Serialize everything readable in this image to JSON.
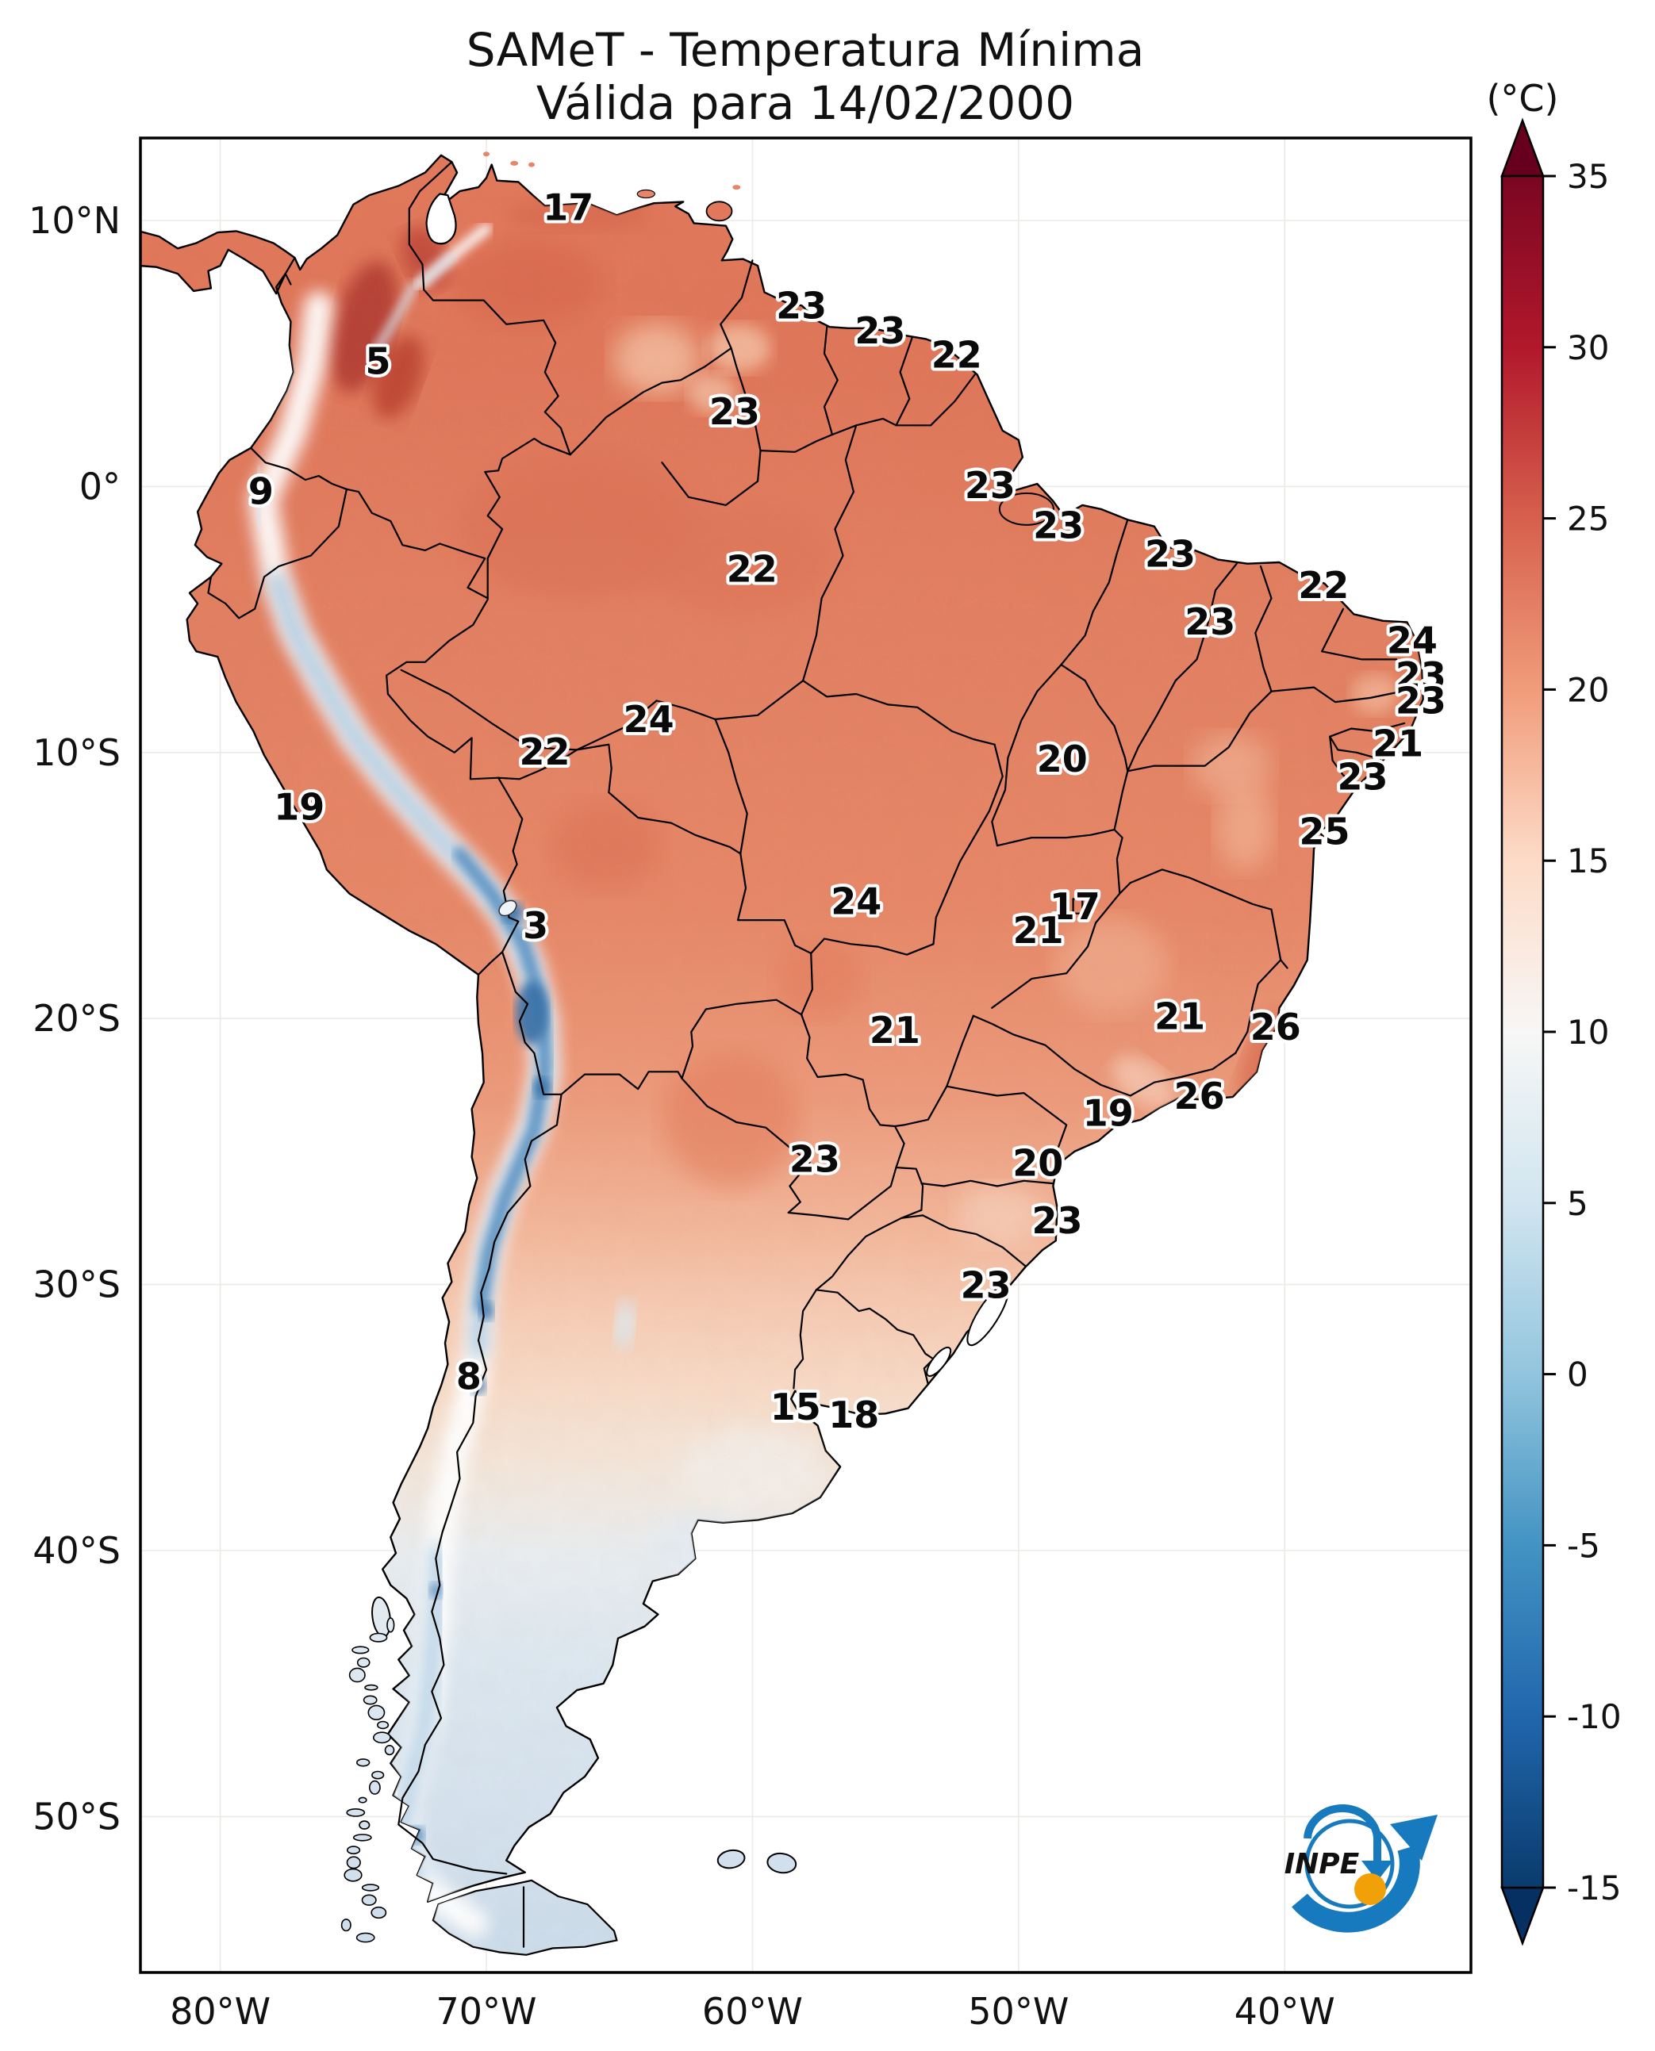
{
  "title": {
    "line1": "SAMeT - Temperatura Mínima",
    "line2": "Válida para 14/02/2000"
  },
  "colorbar": {
    "unit_label": "(°C)",
    "ticks": [
      35,
      30,
      25,
      20,
      15,
      10,
      5,
      0,
      -5,
      -10,
      -15
    ],
    "range": [
      -15,
      35
    ],
    "top_extend_color": "#67001f",
    "bottom_extend_color": "#053061",
    "stop_colors": [
      "#7a0622",
      "#b2182b",
      "#d6604d",
      "#f09c7b",
      "#fddbc7",
      "#f7f7f6",
      "#d1e5f0",
      "#92c5de",
      "#4393c3",
      "#2166ac",
      "#0a3b6d"
    ]
  },
  "axes": {
    "lat": [
      {
        "label": "10°N",
        "value": 10
      },
      {
        "label": "0°",
        "value": 0
      },
      {
        "label": "10°S",
        "value": -10
      },
      {
        "label": "20°S",
        "value": -20
      },
      {
        "label": "30°S",
        "value": -30
      },
      {
        "label": "40°S",
        "value": -40
      },
      {
        "label": "50°S",
        "value": -50
      }
    ],
    "lon": [
      {
        "label": "80°W",
        "value": -80
      },
      {
        "label": "70°W",
        "value": -70
      },
      {
        "label": "60°W",
        "value": -60
      },
      {
        "label": "50°W",
        "value": -50
      },
      {
        "label": "40°W",
        "value": -40
      }
    ]
  },
  "chart_data": {
    "type": "heatmap",
    "title": "SAMeT - Temperatura Mínima",
    "subtitle": "Válida para 14/02/2000",
    "units": "°C",
    "colormap": "RdBu_r",
    "colorbar_ticks": [
      35,
      30,
      25,
      20,
      15,
      10,
      5,
      0,
      -5,
      -10,
      -15
    ],
    "lon_ticks": [
      "80°W",
      "70°W",
      "60°W",
      "50°W",
      "40°W"
    ],
    "lat_ticks": [
      "10°N",
      "0°",
      "10°S",
      "20°S",
      "30°S",
      "40°S",
      "50°S"
    ],
    "point_labels": [
      {
        "value": 17,
        "lon": -66.92,
        "lat": 10.49
      },
      {
        "value": 5,
        "lon": -74.07,
        "lat": 4.71
      },
      {
        "value": 9,
        "lon": -78.47,
        "lat": -0.18
      },
      {
        "value": 19,
        "lon": -77.03,
        "lat": -12.05
      },
      {
        "value": 3,
        "lon": -68.15,
        "lat": -16.5
      },
      {
        "value": 8,
        "lon": -70.66,
        "lat": -33.45
      },
      {
        "value": 15,
        "lon": -58.38,
        "lat": -34.6
      },
      {
        "value": 18,
        "lon": -56.19,
        "lat": -34.9
      },
      {
        "value": 23,
        "lon": -57.66,
        "lat": -25.28
      },
      {
        "value": 23,
        "lon": -58.16,
        "lat": 6.8
      },
      {
        "value": 23,
        "lon": -55.2,
        "lat": 5.85
      },
      {
        "value": 22,
        "lon": -52.33,
        "lat": 4.94
      },
      {
        "value": 23,
        "lon": -60.67,
        "lat": 2.82
      },
      {
        "value": 22,
        "lon": -60.02,
        "lat": -3.1
      },
      {
        "value": 23,
        "lon": -51.07,
        "lat": 0.04
      },
      {
        "value": 23,
        "lon": -48.5,
        "lat": -1.46
      },
      {
        "value": 23,
        "lon": -44.3,
        "lat": -2.53
      },
      {
        "value": 22,
        "lon": -38.54,
        "lat": -3.72
      },
      {
        "value": 23,
        "lon": -42.8,
        "lat": -5.09
      },
      {
        "value": 24,
        "lon": -35.21,
        "lat": -5.79
      },
      {
        "value": 23,
        "lon": -34.88,
        "lat": -7.12
      },
      {
        "value": 23,
        "lon": -34.88,
        "lat": -8.05
      },
      {
        "value": 21,
        "lon": -35.74,
        "lat": -9.67
      },
      {
        "value": 23,
        "lon": -37.07,
        "lat": -10.91
      },
      {
        "value": 25,
        "lon": -38.5,
        "lat": -12.97
      },
      {
        "value": 20,
        "lon": -48.36,
        "lat": -10.24
      },
      {
        "value": 24,
        "lon": -63.9,
        "lat": -8.76
      },
      {
        "value": 22,
        "lon": -67.81,
        "lat": -9.97
      },
      {
        "value": 24,
        "lon": -56.1,
        "lat": -15.6
      },
      {
        "value": 17,
        "lon": -47.88,
        "lat": -15.79
      },
      {
        "value": 21,
        "lon": -49.26,
        "lat": -16.69
      },
      {
        "value": 21,
        "lon": -43.94,
        "lat": -19.92
      },
      {
        "value": 26,
        "lon": -40.34,
        "lat": -20.32
      },
      {
        "value": 21,
        "lon": -54.65,
        "lat": -20.44
      },
      {
        "value": 26,
        "lon": -43.21,
        "lat": -22.91
      },
      {
        "value": 19,
        "lon": -46.63,
        "lat": -23.55
      },
      {
        "value": 20,
        "lon": -49.27,
        "lat": -25.43
      },
      {
        "value": 23,
        "lon": -48.55,
        "lat": -27.6
      },
      {
        "value": 23,
        "lon": -51.23,
        "lat": -30.03
      }
    ]
  },
  "logo": {
    "text": "INPE",
    "blue": "#1779be",
    "orange": "#f2a007"
  }
}
